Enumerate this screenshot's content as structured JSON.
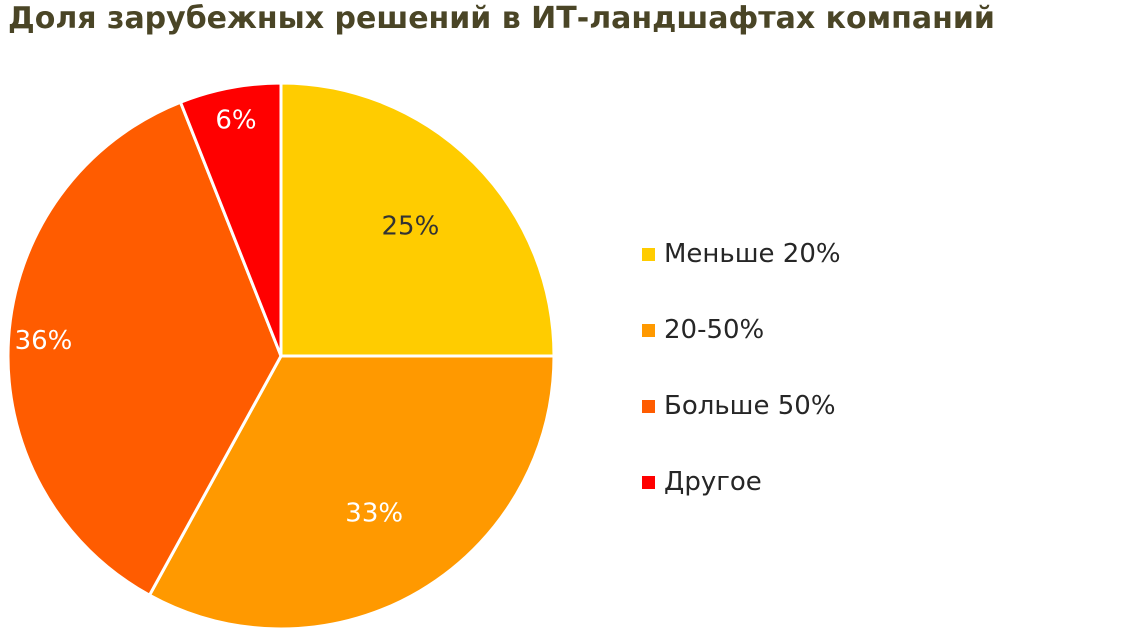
{
  "chart_data": {
    "type": "pie",
    "title": "Доля зарубежных решений в ИТ-ландшафтах компаний",
    "categories": [
      "Меньше 20%",
      "20-50%",
      "Больше 50%",
      "Другое"
    ],
    "values": [
      25,
      33,
      36,
      6
    ],
    "data_labels": [
      "25%",
      "33%",
      "36%",
      "6%"
    ],
    "colors": [
      "#FFCC00",
      "#FF9900",
      "#FF5C00",
      "#FF0000"
    ],
    "label_colors": [
      "#333333",
      "#ffffff",
      "#ffffff",
      "#ffffff"
    ],
    "start_angle": "12 o'clock",
    "direction": "clockwise",
    "legend_position": "right"
  }
}
